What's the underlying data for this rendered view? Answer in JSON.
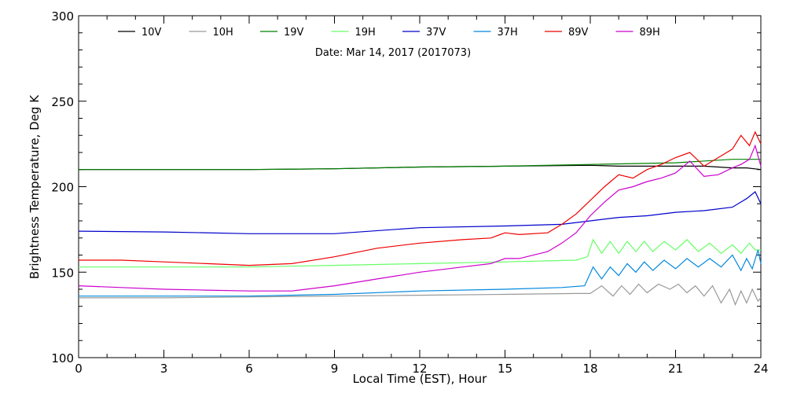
{
  "chart_data": {
    "type": "line",
    "subtitle": "Date: Mar 14, 2017 (2017073)",
    "xlabel": "Local Time (EST), Hour",
    "ylabel": "Brightness Temperature, Deg K",
    "xlim": [
      0,
      24
    ],
    "ylim": [
      100,
      300
    ],
    "xticks": [
      0,
      3,
      6,
      9,
      12,
      15,
      18,
      21,
      24
    ],
    "yticks": [
      100,
      150,
      200,
      250,
      300
    ],
    "xtick_labels": [
      "0",
      "3",
      "6",
      "9",
      "12",
      "15",
      "18",
      "21",
      "24"
    ],
    "ytick_labels": [
      "100",
      "150",
      "200",
      "250",
      "300"
    ],
    "grid": false,
    "legend_position": "top",
    "series": [
      {
        "name": "10V",
        "color": "#000000",
        "x": [
          0,
          3,
          6,
          9,
          12,
          15,
          18,
          19,
          20,
          21,
          22,
          23,
          23.5,
          24
        ],
        "y": [
          210,
          210,
          210,
          210.5,
          211.5,
          212,
          212.5,
          212,
          212,
          212,
          212,
          211,
          211,
          210
        ]
      },
      {
        "name": "10H",
        "color": "#999999",
        "x": [
          0,
          3,
          6,
          9,
          12,
          15,
          17.5,
          18,
          18.4,
          18.8,
          19.1,
          19.4,
          19.7,
          20,
          20.4,
          20.8,
          21.1,
          21.4,
          21.7,
          22,
          22.3,
          22.6,
          22.9,
          23.1,
          23.3,
          23.5,
          23.7,
          23.9,
          24
        ],
        "y": [
          135,
          135,
          135.5,
          136,
          136.5,
          137,
          137.5,
          137.5,
          142,
          136,
          142,
          137,
          143,
          138,
          143,
          140,
          143,
          138,
          142,
          136,
          142,
          132,
          140,
          131,
          139,
          132,
          140,
          133,
          135
        ]
      },
      {
        "name": "19V",
        "color": "#008000",
        "x": [
          0,
          3,
          6,
          9,
          12,
          15,
          18,
          21,
          23,
          24
        ],
        "y": [
          210,
          210,
          210,
          210.5,
          211.5,
          212,
          213,
          214,
          216,
          216
        ]
      },
      {
        "name": "19H",
        "color": "#66ff66",
        "x": [
          0,
          3,
          6,
          9,
          12,
          15,
          17.5,
          17.9,
          18.1,
          18.4,
          18.7,
          19,
          19.3,
          19.6,
          19.9,
          20.2,
          20.6,
          21,
          21.4,
          21.8,
          22.2,
          22.6,
          23,
          23.3,
          23.6,
          23.8,
          24
        ],
        "y": [
          153,
          153,
          153,
          154,
          155,
          156,
          157,
          159,
          169,
          161,
          168,
          161,
          168,
          162,
          168,
          162,
          168,
          163,
          169,
          162,
          167,
          161,
          166,
          161,
          167,
          163,
          163
        ]
      },
      {
        "name": "37V",
        "color": "#0000cc",
        "x": [
          0,
          3,
          6,
          9,
          12,
          15,
          17,
          18,
          19,
          20,
          21,
          22,
          23,
          23.5,
          23.8,
          24
        ],
        "y": [
          174,
          173.5,
          172.5,
          172.5,
          176,
          177,
          178,
          180,
          182,
          183,
          185,
          186,
          188,
          193,
          197,
          190
        ]
      },
      {
        "name": "37H",
        "color": "#0088dd",
        "x": [
          0,
          3,
          6,
          9,
          12,
          15,
          17,
          17.8,
          18.1,
          18.4,
          18.7,
          19,
          19.3,
          19.6,
          19.9,
          20.2,
          20.6,
          21,
          21.4,
          21.8,
          22.2,
          22.6,
          23,
          23.3,
          23.5,
          23.7,
          23.9,
          24
        ],
        "y": [
          136,
          136,
          136,
          137,
          139,
          140,
          141,
          142,
          153,
          146,
          153,
          148,
          155,
          150,
          156,
          151,
          157,
          152,
          158,
          153,
          158,
          153,
          160,
          151,
          158,
          152,
          163,
          155
        ]
      },
      {
        "name": "89V",
        "color": "#ee0000",
        "x": [
          0,
          1.5,
          3,
          4.5,
          6,
          7.5,
          9,
          10.5,
          12,
          13.5,
          14.5,
          15,
          15.5,
          16.5,
          17,
          17.5,
          18,
          18.5,
          19,
          19.5,
          20,
          20.5,
          21,
          21.5,
          22,
          22.5,
          23,
          23.3,
          23.6,
          23.8,
          24
        ],
        "y": [
          157,
          157,
          156,
          155,
          154,
          155,
          159,
          164,
          167,
          169,
          170,
          173,
          172,
          173,
          178,
          184,
          192,
          200,
          207,
          205,
          210,
          213,
          217,
          220,
          212,
          217,
          222,
          230,
          224,
          232,
          225
        ]
      },
      {
        "name": "89H",
        "color": "#cc00cc",
        "x": [
          0,
          1.5,
          3,
          4.5,
          6,
          7.5,
          9,
          10.5,
          12,
          13.5,
          14.5,
          15,
          15.5,
          16.5,
          17,
          17.5,
          18,
          18.5,
          19,
          19.5,
          20,
          20.5,
          21,
          21.5,
          22,
          22.5,
          23,
          23.3,
          23.6,
          23.8,
          24
        ],
        "y": [
          142,
          141,
          140,
          139.5,
          139,
          139,
          142,
          146,
          150,
          153,
          155,
          158,
          158,
          162,
          167,
          173,
          183,
          191,
          198,
          200,
          203,
          205,
          208,
          215,
          206,
          207,
          211,
          213,
          216,
          224,
          212
        ]
      }
    ]
  }
}
